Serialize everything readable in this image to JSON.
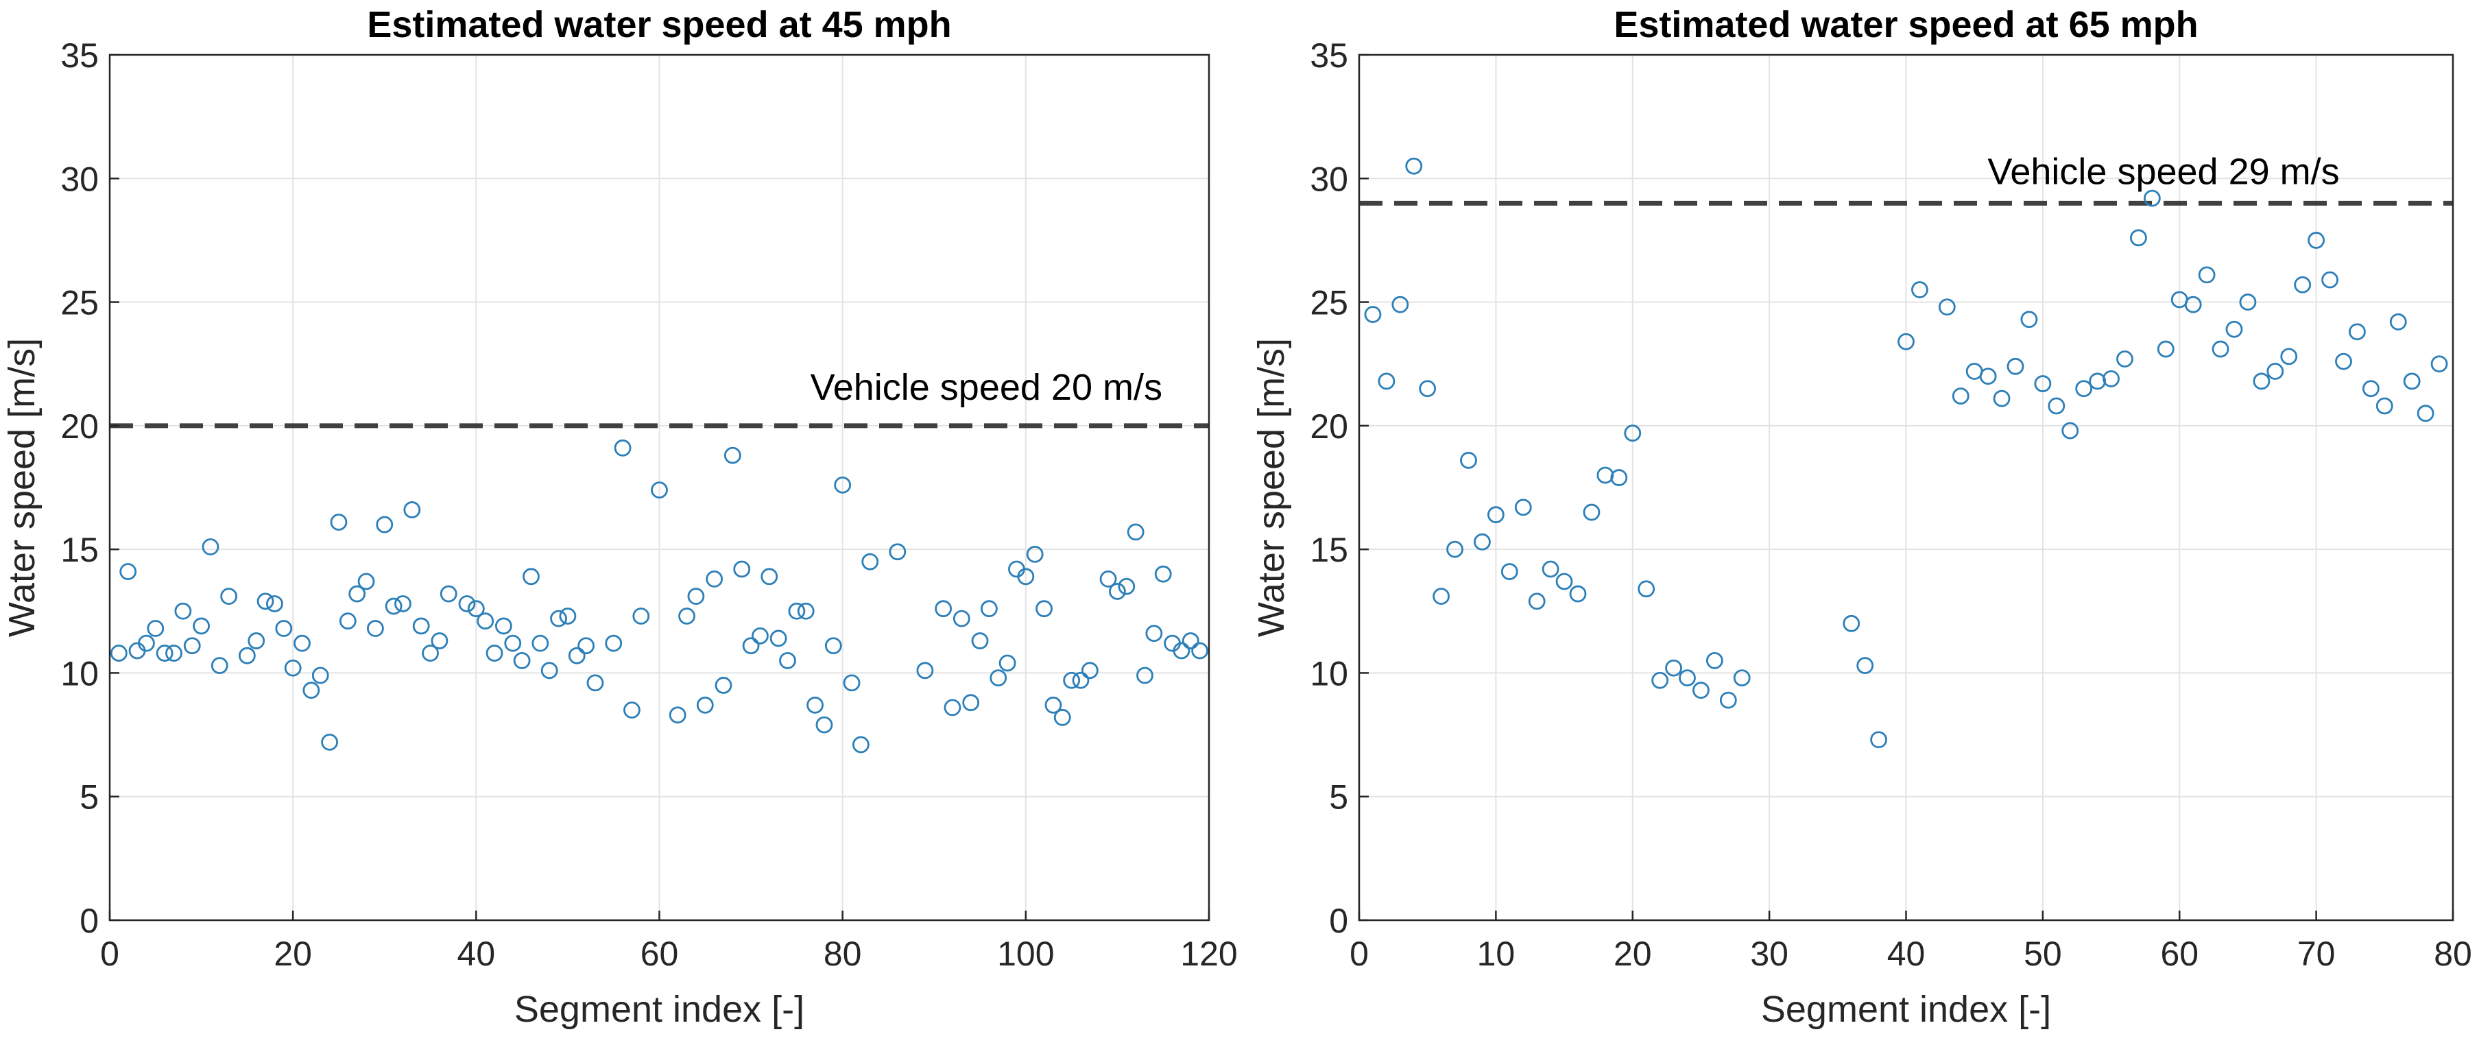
{
  "chart_data": [
    {
      "type": "scatter",
      "title": "Estimated water speed at 45 mph",
      "xlabel": "Segment index [-]",
      "ylabel": "Water speed [m/s]",
      "xlim": [
        0,
        120
      ],
      "ylim": [
        0,
        35
      ],
      "xticks": [
        "0",
        "20",
        "40",
        "60",
        "80",
        "100",
        "120"
      ],
      "yticks": [
        "0",
        "5",
        "10",
        "15",
        "20",
        "25",
        "30",
        "35"
      ],
      "grid": true,
      "marker": "open-circle",
      "color": "#2c7fb8",
      "reference_line": {
        "y": 20,
        "label": "Vehicle speed 20 m/s",
        "color": "#404040"
      },
      "series": [
        {
          "name": "Water speed",
          "x": [
            1,
            2,
            3,
            4,
            5,
            6,
            7,
            8,
            9,
            10,
            11,
            12,
            13,
            15,
            16,
            17,
            18,
            19,
            20,
            21,
            22,
            23,
            24,
            25,
            26,
            27,
            28,
            29,
            30,
            31,
            32,
            33,
            34,
            35,
            36,
            37,
            39,
            40,
            41,
            42,
            43,
            44,
            45,
            46,
            47,
            48,
            49,
            50,
            51,
            52,
            53,
            55,
            56,
            57,
            58,
            60,
            62,
            63,
            64,
            65,
            66,
            67,
            68,
            69,
            70,
            71,
            72,
            73,
            74,
            75,
            76,
            77,
            78,
            79,
            80,
            81,
            82,
            83,
            86,
            89,
            91,
            92,
            93,
            94,
            95,
            96,
            97,
            98,
            99,
            100,
            101,
            102,
            103,
            104,
            105,
            106,
            107,
            109,
            110,
            111,
            112,
            113,
            114,
            115,
            116,
            117,
            118,
            119
          ],
          "y": [
            10.8,
            14.1,
            10.9,
            11.2,
            11.8,
            10.8,
            10.8,
            12.5,
            11.1,
            11.9,
            15.1,
            10.3,
            13.1,
            10.7,
            11.3,
            12.9,
            12.8,
            11.8,
            10.2,
            11.2,
            9.3,
            9.9,
            7.2,
            16.1,
            12.1,
            13.2,
            13.7,
            11.8,
            16.0,
            12.7,
            12.8,
            16.6,
            11.9,
            10.8,
            11.3,
            13.2,
            12.8,
            12.6,
            12.1,
            10.8,
            11.9,
            11.2,
            10.5,
            13.9,
            11.2,
            10.1,
            12.2,
            12.3,
            10.7,
            11.1,
            9.6,
            11.2,
            19.1,
            8.5,
            12.3,
            17.4,
            8.3,
            12.3,
            13.1,
            8.7,
            13.8,
            9.5,
            18.8,
            14.2,
            11.1,
            11.5,
            13.9,
            11.4,
            10.5,
            12.5,
            12.5,
            8.7,
            7.9,
            11.1,
            17.6,
            9.6,
            7.1,
            14.5,
            14.9,
            10.1,
            12.6,
            8.6,
            12.2,
            8.8,
            11.3,
            12.6,
            9.8,
            10.4,
            14.2,
            13.9,
            14.8,
            12.6,
            8.7,
            8.2,
            9.7,
            9.7,
            10.1,
            13.8,
            13.3,
            13.5,
            15.7,
            9.9,
            11.6,
            14.0,
            11.2,
            10.9,
            11.3,
            10.9
          ]
        }
      ]
    },
    {
      "type": "scatter",
      "title": "Estimated water speed at 65 mph",
      "xlabel": "Segment index [-]",
      "ylabel": "Water speed [m/s]",
      "xlim": [
        0,
        80
      ],
      "ylim": [
        0,
        35
      ],
      "xticks": [
        "0",
        "10",
        "20",
        "30",
        "40",
        "50",
        "60",
        "70",
        "80"
      ],
      "yticks": [
        "0",
        "5",
        "10",
        "15",
        "20",
        "25",
        "30",
        "35"
      ],
      "grid": true,
      "marker": "open-circle",
      "color": "#2c7fb8",
      "reference_line": {
        "y": 29,
        "label": "Vehicle speed 29 m/s",
        "color": "#404040"
      },
      "series": [
        {
          "name": "Water speed",
          "x": [
            1,
            2,
            3,
            4,
            5,
            6,
            7,
            8,
            9,
            10,
            11,
            12,
            13,
            14,
            15,
            16,
            17,
            18,
            19,
            20,
            21,
            22,
            23,
            24,
            25,
            26,
            27,
            28,
            36,
            37,
            38,
            40,
            41,
            43,
            44,
            45,
            46,
            47,
            48,
            49,
            50,
            51,
            52,
            53,
            54,
            55,
            56,
            57,
            58,
            59,
            60,
            61,
            62,
            63,
            64,
            65,
            66,
            67,
            68,
            69,
            70,
            71,
            72,
            73,
            74,
            75,
            76,
            77,
            78,
            79
          ],
          "y": [
            24.5,
            21.8,
            24.9,
            30.5,
            21.5,
            13.1,
            15.0,
            18.6,
            15.3,
            16.4,
            14.1,
            16.7,
            12.9,
            14.2,
            13.7,
            13.2,
            16.5,
            18.0,
            17.9,
            19.7,
            13.4,
            9.7,
            10.2,
            9.8,
            9.3,
            10.5,
            8.9,
            9.8,
            12.0,
            10.3,
            7.3,
            23.4,
            25.5,
            24.8,
            21.2,
            22.2,
            22.0,
            21.1,
            22.4,
            24.3,
            21.7,
            20.8,
            19.8,
            21.5,
            21.8,
            21.9,
            22.7,
            27.6,
            29.2,
            23.1,
            25.1,
            24.9,
            26.1,
            23.1,
            23.9,
            25.0,
            21.8,
            22.2,
            22.8,
            25.7,
            27.5,
            25.9,
            22.6,
            23.8,
            21.5,
            20.8,
            24.2,
            21.8,
            20.5,
            22.5
          ]
        }
      ]
    }
  ]
}
